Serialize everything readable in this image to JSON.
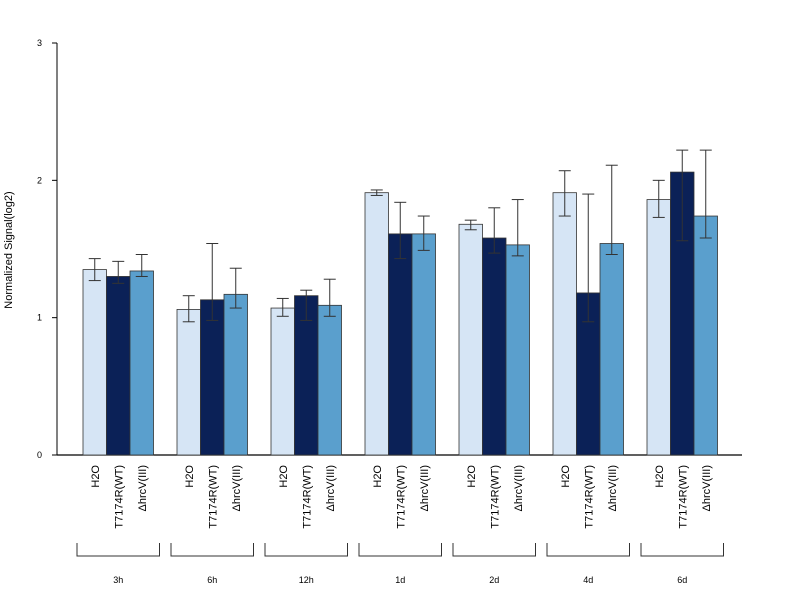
{
  "chart_data": {
    "type": "bar",
    "ylabel": "Normalized Signal(log2)",
    "ylim": [
      0,
      3
    ],
    "yticks": [
      "0",
      "1",
      "2",
      "3"
    ],
    "bar_labels": [
      "H2O",
      "T7174R(WT)",
      "ΔhrcV(III)"
    ],
    "colors": [
      "#d6e5f5",
      "#0b2157",
      "#5a9fcd"
    ],
    "groups": [
      {
        "label": "3h",
        "values": [
          1.35,
          1.3,
          1.34
        ],
        "err_low": [
          1.27,
          1.25,
          1.3
        ],
        "err_high": [
          1.43,
          1.41,
          1.46
        ]
      },
      {
        "label": "6h",
        "values": [
          1.06,
          1.13,
          1.17
        ],
        "err_low": [
          0.97,
          0.98,
          1.07
        ],
        "err_high": [
          1.16,
          1.54,
          1.36
        ]
      },
      {
        "label": "12h",
        "values": [
          1.07,
          1.16,
          1.09
        ],
        "err_low": [
          1.01,
          0.98,
          1.01
        ],
        "err_high": [
          1.14,
          1.2,
          1.28
        ]
      },
      {
        "label": "1d",
        "values": [
          1.91,
          1.61,
          1.61
        ],
        "err_low": [
          1.89,
          1.43,
          1.49
        ],
        "err_high": [
          1.93,
          1.84,
          1.74
        ]
      },
      {
        "label": "2d",
        "values": [
          1.68,
          1.58,
          1.53
        ],
        "err_low": [
          1.64,
          1.47,
          1.45
        ],
        "err_high": [
          1.71,
          1.8,
          1.86
        ]
      },
      {
        "label": "4d",
        "values": [
          1.91,
          1.18,
          1.54
        ],
        "err_low": [
          1.74,
          0.97,
          1.46
        ],
        "err_high": [
          2.07,
          1.9,
          2.11
        ]
      },
      {
        "label": "6d",
        "values": [
          1.86,
          2.06,
          1.74
        ],
        "err_low": [
          1.73,
          1.56,
          1.58
        ],
        "err_high": [
          2.0,
          2.22,
          2.22
        ]
      }
    ]
  }
}
